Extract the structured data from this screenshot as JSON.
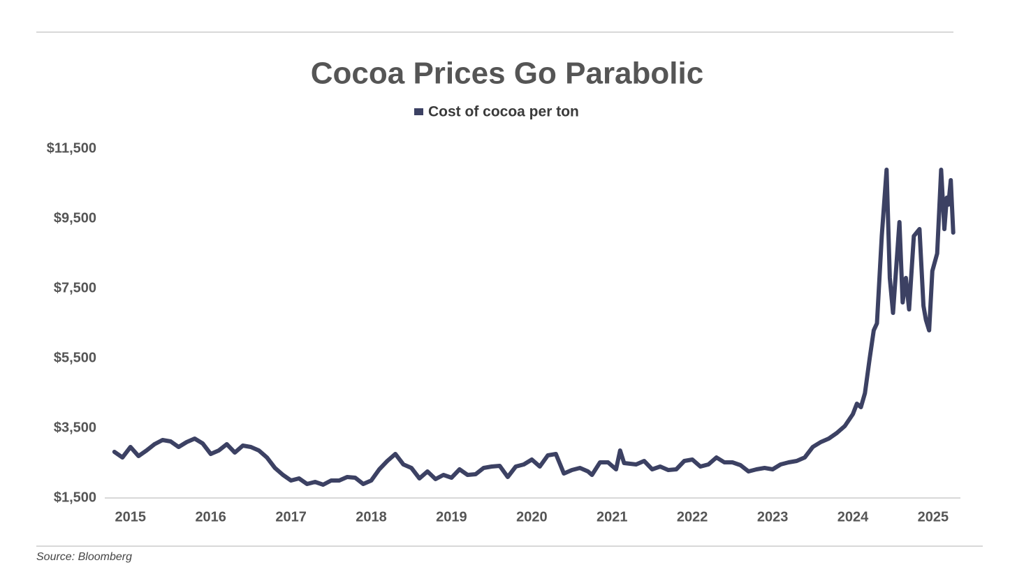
{
  "chart_data": {
    "type": "line",
    "title": "Cocoa Prices Go Parabolic",
    "source": "Source: Bloomberg",
    "x": [
      2014.8,
      2014.9,
      2015.0,
      2015.1,
      2015.2,
      2015.3,
      2015.4,
      2015.5,
      2015.6,
      2015.7,
      2015.8,
      2015.9,
      2016.0,
      2016.1,
      2016.2,
      2016.3,
      2016.4,
      2016.5,
      2016.6,
      2016.7,
      2016.8,
      2016.9,
      2017.0,
      2017.1,
      2017.2,
      2017.3,
      2017.4,
      2017.5,
      2017.6,
      2017.7,
      2017.8,
      2017.9,
      2018.0,
      2018.1,
      2018.2,
      2018.3,
      2018.4,
      2018.5,
      2018.6,
      2018.7,
      2018.8,
      2018.9,
      2019.0,
      2019.1,
      2019.2,
      2019.3,
      2019.4,
      2019.5,
      2019.6,
      2019.7,
      2019.8,
      2019.9,
      2020.0,
      2020.1,
      2020.2,
      2020.3,
      2020.4,
      2020.5,
      2020.6,
      2020.7,
      2020.75,
      2020.85,
      2020.95,
      2021.05,
      2021.1,
      2021.15,
      2021.3,
      2021.4,
      2021.5,
      2021.6,
      2021.7,
      2021.8,
      2021.9,
      2022.0,
      2022.1,
      2022.2,
      2022.3,
      2022.4,
      2022.5,
      2022.6,
      2022.7,
      2022.8,
      2022.9,
      2023.0,
      2023.1,
      2023.2,
      2023.3,
      2023.4,
      2023.5,
      2023.6,
      2023.7,
      2023.8,
      2023.9,
      2024.0,
      2024.05,
      2024.1,
      2024.15,
      2024.21,
      2024.26,
      2024.3,
      2024.36,
      2024.42,
      2024.46,
      2024.5,
      2024.58,
      2024.62,
      2024.66,
      2024.7,
      2024.76,
      2024.83,
      2024.88,
      2024.91,
      2024.95,
      2024.99,
      2025.05,
      2025.1,
      2025.14,
      2025.17,
      2025.19,
      2025.22,
      2025.25
    ],
    "series": [
      {
        "name": "Cost of cocoa per ton",
        "color": "#3c4163",
        "values": [
          2820,
          2660,
          2960,
          2700,
          2860,
          3040,
          3160,
          3120,
          2960,
          3100,
          3200,
          3060,
          2760,
          2860,
          3040,
          2800,
          3000,
          2960,
          2860,
          2660,
          2360,
          2160,
          2000,
          2060,
          1900,
          1960,
          1880,
          2000,
          2000,
          2100,
          2080,
          1900,
          2000,
          2320,
          2560,
          2760,
          2460,
          2360,
          2060,
          2260,
          2040,
          2160,
          2080,
          2320,
          2160,
          2180,
          2360,
          2400,
          2420,
          2100,
          2400,
          2460,
          2600,
          2400,
          2720,
          2760,
          2200,
          2300,
          2360,
          2260,
          2160,
          2520,
          2520,
          2320,
          2860,
          2500,
          2460,
          2560,
          2320,
          2400,
          2300,
          2320,
          2560,
          2600,
          2400,
          2460,
          2660,
          2520,
          2520,
          2440,
          2260,
          2320,
          2360,
          2320,
          2460,
          2520,
          2560,
          2660,
          2960,
          3100,
          3200,
          3360,
          3560,
          3900,
          4200,
          4100,
          4500,
          5500,
          6300,
          6500,
          9000,
          10900,
          7800,
          6800,
          9400,
          7100,
          7800,
          6900,
          9000,
          9200,
          7000,
          6600,
          6300,
          8000,
          8500,
          10900,
          9200,
          10100,
          9900,
          10600,
          9100
        ]
      }
    ],
    "xlim": [
      2014.68,
      2025.34
    ],
    "xticks": [
      2015,
      2016,
      2017,
      2018,
      2019,
      2020,
      2021,
      2022,
      2023,
      2024,
      2025
    ],
    "ylim": [
      1500,
      11500
    ],
    "yticks": [
      {
        "value": 1500,
        "label": "$1,500"
      },
      {
        "value": 3500,
        "label": "$3,500"
      },
      {
        "value": 5500,
        "label": "$5,500"
      },
      {
        "value": 7500,
        "label": "$7,500"
      },
      {
        "value": 9500,
        "label": "$9,500"
      },
      {
        "value": 11500,
        "label": "$11,500"
      }
    ],
    "grid": false
  }
}
